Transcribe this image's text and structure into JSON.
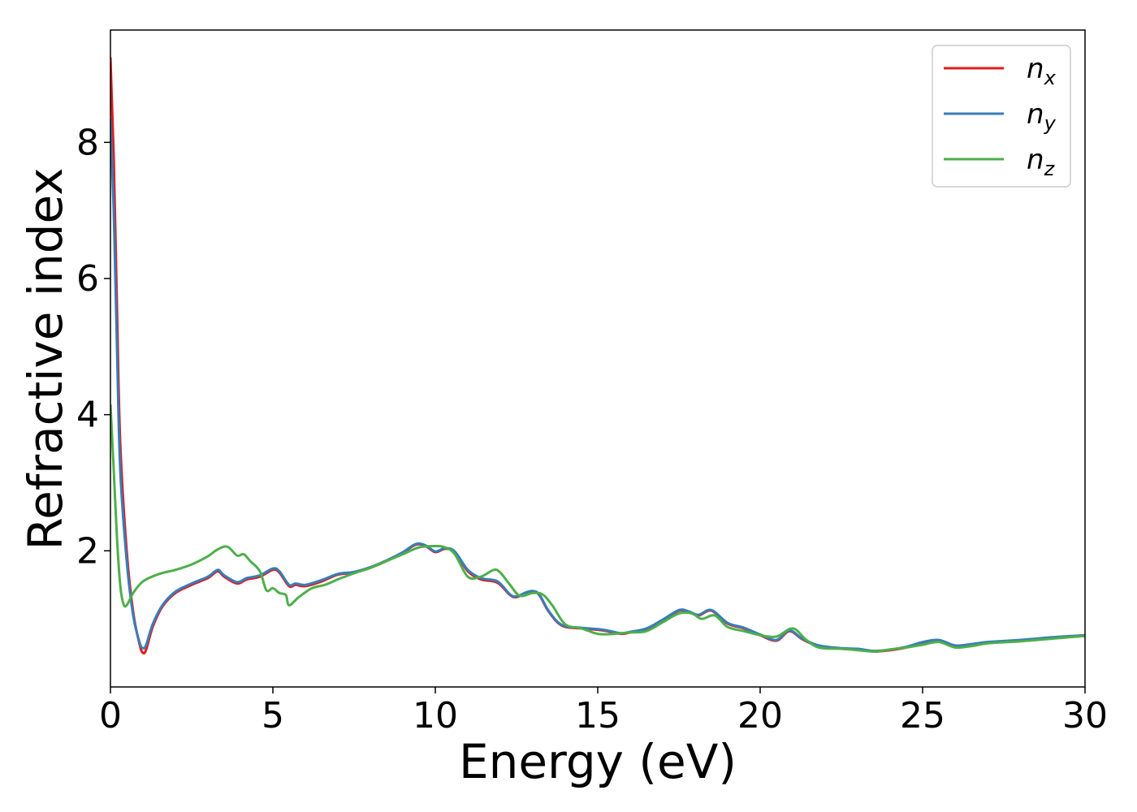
{
  "chart_data": {
    "type": "line",
    "xlabel": "Energy (eV)",
    "ylabel": "Refractive index",
    "xlim": [
      0,
      30
    ],
    "ylim": [
      0,
      9.65
    ],
    "xticks": [
      0,
      5,
      10,
      15,
      20,
      25,
      30
    ],
    "yticks": [
      2,
      4,
      6,
      8
    ],
    "grid": false,
    "legend_position": "top-right",
    "series": [
      {
        "name": "n",
        "subscript": "x",
        "color": "#e41a1c",
        "x": [
          0,
          0.1,
          0.2,
          0.3,
          0.5,
          0.7,
          0.9,
          1.0,
          1.1,
          1.3,
          1.6,
          2.0,
          2.5,
          3.0,
          3.3,
          3.5,
          3.9,
          4.2,
          4.6,
          5.0,
          5.2,
          5.5,
          5.7,
          6.0,
          6.5,
          7.0,
          7.5,
          8.0,
          8.5,
          9.0,
          9.4,
          9.7,
          10.0,
          10.3,
          10.6,
          11.0,
          11.4,
          11.8,
          12.0,
          12.3,
          12.5,
          12.8,
          13.0,
          13.2,
          13.5,
          13.9,
          14.5,
          15.0,
          15.3,
          15.7,
          16.0,
          16.5,
          17.0,
          17.5,
          17.8,
          18.1,
          18.5,
          19.0,
          19.5,
          20.0,
          20.5,
          20.9,
          21.3,
          21.8,
          22.5,
          23.0,
          23.5,
          24.0,
          24.5,
          25.0,
          25.5,
          26.0,
          26.5,
          27.0,
          28.0,
          29.0,
          30.0
        ],
        "y": [
          9.25,
          7.8,
          5.6,
          3.6,
          2.0,
          1.1,
          0.62,
          0.5,
          0.55,
          0.88,
          1.18,
          1.38,
          1.5,
          1.6,
          1.7,
          1.62,
          1.52,
          1.58,
          1.62,
          1.72,
          1.68,
          1.48,
          1.5,
          1.48,
          1.55,
          1.65,
          1.68,
          1.75,
          1.85,
          1.97,
          2.09,
          2.07,
          1.98,
          2.03,
          1.98,
          1.7,
          1.58,
          1.55,
          1.5,
          1.35,
          1.32,
          1.38,
          1.4,
          1.35,
          1.1,
          0.9,
          0.86,
          0.84,
          0.82,
          0.78,
          0.8,
          0.85,
          0.98,
          1.12,
          1.1,
          1.05,
          1.12,
          0.93,
          0.86,
          0.76,
          0.68,
          0.82,
          0.7,
          0.6,
          0.56,
          0.55,
          0.52,
          0.54,
          0.58,
          0.65,
          0.68,
          0.6,
          0.62,
          0.65,
          0.68,
          0.72,
          0.75
        ]
      },
      {
        "name": "n",
        "subscript": "y",
        "color": "#377eb8",
        "x": [
          0,
          0.1,
          0.2,
          0.3,
          0.5,
          0.7,
          0.9,
          1.0,
          1.1,
          1.3,
          1.6,
          2.0,
          2.5,
          3.0,
          3.3,
          3.5,
          3.9,
          4.2,
          4.6,
          5.0,
          5.2,
          5.5,
          5.7,
          6.0,
          6.5,
          7.0,
          7.5,
          8.0,
          8.5,
          9.0,
          9.4,
          9.7,
          10.0,
          10.3,
          10.6,
          11.0,
          11.4,
          11.8,
          12.0,
          12.3,
          12.5,
          12.8,
          13.0,
          13.2,
          13.5,
          13.9,
          14.5,
          15.0,
          15.3,
          15.7,
          16.0,
          16.5,
          17.0,
          17.5,
          17.8,
          18.1,
          18.5,
          19.0,
          19.5,
          20.0,
          20.5,
          20.9,
          21.3,
          21.8,
          22.5,
          23.0,
          23.5,
          24.0,
          24.5,
          25.0,
          25.5,
          26.0,
          26.5,
          27.0,
          28.0,
          29.0,
          30.0
        ],
        "y": [
          8.35,
          7.0,
          5.0,
          3.2,
          1.85,
          1.05,
          0.65,
          0.57,
          0.62,
          0.92,
          1.2,
          1.4,
          1.52,
          1.62,
          1.72,
          1.64,
          1.54,
          1.6,
          1.64,
          1.74,
          1.7,
          1.5,
          1.52,
          1.5,
          1.57,
          1.66,
          1.69,
          1.76,
          1.86,
          1.98,
          2.1,
          2.08,
          1.99,
          2.04,
          1.99,
          1.72,
          1.6,
          1.57,
          1.52,
          1.36,
          1.33,
          1.39,
          1.41,
          1.36,
          1.11,
          0.91,
          0.87,
          0.85,
          0.83,
          0.79,
          0.81,
          0.86,
          0.99,
          1.13,
          1.11,
          1.06,
          1.13,
          0.94,
          0.87,
          0.77,
          0.69,
          0.83,
          0.71,
          0.61,
          0.57,
          0.56,
          0.53,
          0.55,
          0.59,
          0.66,
          0.69,
          0.61,
          0.63,
          0.66,
          0.69,
          0.73,
          0.76
        ]
      },
      {
        "name": "n",
        "subscript": "z",
        "color": "#4daf4a",
        "x": [
          0,
          0.1,
          0.2,
          0.3,
          0.4,
          0.5,
          0.7,
          1.0,
          1.5,
          2.0,
          2.5,
          3.0,
          3.3,
          3.6,
          3.9,
          4.1,
          4.3,
          4.6,
          4.8,
          5.0,
          5.2,
          5.4,
          5.5,
          5.8,
          6.2,
          6.6,
          7.0,
          7.5,
          8.0,
          8.5,
          9.0,
          9.5,
          10.0,
          10.3,
          10.6,
          11.0,
          11.4,
          11.8,
          12.0,
          12.3,
          12.6,
          13.0,
          13.3,
          13.6,
          14.0,
          14.5,
          15.0,
          15.5,
          16.0,
          16.5,
          17.0,
          17.5,
          17.9,
          18.2,
          18.6,
          19.0,
          19.5,
          20.0,
          20.5,
          21.0,
          21.4,
          21.8,
          22.5,
          23.0,
          23.5,
          24.0,
          24.5,
          25.0,
          25.5,
          26.0,
          26.5,
          27.0,
          28.0,
          29.0,
          30.0
        ],
        "y": [
          4.15,
          3.2,
          2.2,
          1.5,
          1.22,
          1.2,
          1.38,
          1.55,
          1.66,
          1.72,
          1.8,
          1.92,
          2.02,
          2.06,
          1.93,
          1.95,
          1.85,
          1.7,
          1.42,
          1.45,
          1.38,
          1.35,
          1.2,
          1.32,
          1.45,
          1.5,
          1.58,
          1.67,
          1.75,
          1.85,
          1.95,
          2.05,
          2.07,
          2.05,
          1.95,
          1.62,
          1.62,
          1.72,
          1.68,
          1.5,
          1.34,
          1.38,
          1.36,
          1.2,
          0.92,
          0.86,
          0.78,
          0.78,
          0.8,
          0.82,
          0.95,
          1.08,
          1.08,
          1.0,
          1.05,
          0.88,
          0.82,
          0.76,
          0.74,
          0.86,
          0.7,
          0.58,
          0.56,
          0.54,
          0.52,
          0.55,
          0.58,
          0.62,
          0.66,
          0.58,
          0.6,
          0.64,
          0.67,
          0.71,
          0.75
        ]
      }
    ]
  }
}
